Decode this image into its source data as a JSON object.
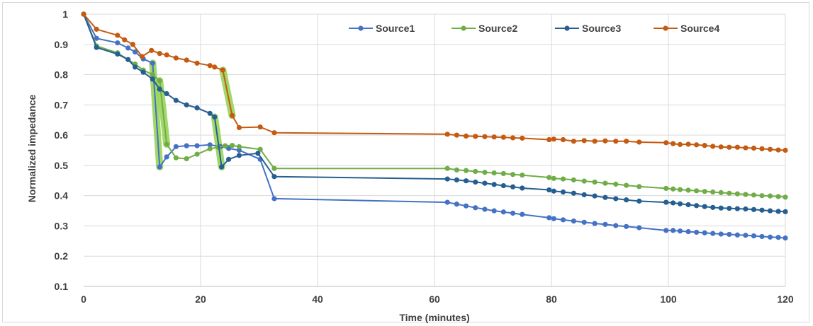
{
  "chart_data": {
    "type": "line",
    "xlabel": "Time (minutes)",
    "ylabel": "Normalized impedance",
    "xlim": [
      0,
      120
    ],
    "ylim": [
      0.1,
      1.0
    ],
    "x_ticks": [
      "0",
      "20",
      "40",
      "60",
      "80",
      "100",
      "120"
    ],
    "y_ticks": [
      "0.1",
      "0.2",
      "0.3",
      "0.4",
      "0.5",
      "0.6",
      "0.7",
      "0.8",
      "0.9",
      "1"
    ],
    "grid": true,
    "legend_position": "top-right",
    "series": [
      {
        "name": "Source1",
        "color": "#4472c4",
        "points": [
          [
            0,
            1.0
          ],
          [
            2.2,
            0.92
          ],
          [
            5.8,
            0.905
          ],
          [
            7.6,
            0.888
          ],
          [
            8.8,
            0.875
          ],
          [
            10.2,
            0.852
          ],
          [
            11.8,
            0.838
          ],
          [
            13.0,
            0.495
          ],
          [
            14.2,
            0.528
          ],
          [
            15.8,
            0.562
          ],
          [
            17.6,
            0.565
          ],
          [
            19.4,
            0.565
          ],
          [
            21.6,
            0.568
          ],
          [
            23.4,
            0.562
          ],
          [
            24.8,
            0.556
          ],
          [
            26.6,
            0.55
          ],
          [
            30.2,
            0.52
          ],
          [
            32.6,
            0.39
          ],
          [
            62.2,
            0.378
          ],
          [
            63.8,
            0.372
          ],
          [
            65.4,
            0.366
          ],
          [
            67.0,
            0.36
          ],
          [
            68.6,
            0.355
          ],
          [
            70.2,
            0.35
          ],
          [
            71.8,
            0.346
          ],
          [
            73.4,
            0.342
          ],
          [
            75.0,
            0.338
          ],
          [
            79.6,
            0.327
          ],
          [
            80.4,
            0.324
          ],
          [
            82.0,
            0.32
          ],
          [
            83.8,
            0.316
          ],
          [
            85.6,
            0.312
          ],
          [
            87.4,
            0.308
          ],
          [
            89.2,
            0.305
          ],
          [
            91.0,
            0.301
          ],
          [
            92.8,
            0.298
          ],
          [
            95.0,
            0.294
          ],
          [
            99.6,
            0.285
          ],
          [
            100.8,
            0.285
          ],
          [
            102.0,
            0.283
          ],
          [
            103.4,
            0.281
          ],
          [
            104.8,
            0.279
          ],
          [
            106.2,
            0.277
          ],
          [
            107.6,
            0.275
          ],
          [
            109.0,
            0.273
          ],
          [
            110.4,
            0.272
          ],
          [
            111.8,
            0.27
          ],
          [
            113.2,
            0.269
          ],
          [
            114.6,
            0.267
          ],
          [
            116.0,
            0.265
          ],
          [
            117.4,
            0.263
          ],
          [
            118.8,
            0.262
          ],
          [
            120.0,
            0.26
          ]
        ]
      },
      {
        "name": "Source2",
        "color": "#70ad47",
        "points": [
          [
            0,
            1.0
          ],
          [
            2.2,
            0.895
          ],
          [
            5.8,
            0.872
          ],
          [
            8.8,
            0.835
          ],
          [
            10.2,
            0.815
          ],
          [
            11.8,
            0.8
          ],
          [
            13.0,
            0.78
          ],
          [
            14.2,
            0.57
          ],
          [
            15.8,
            0.525
          ],
          [
            17.6,
            0.522
          ],
          [
            19.4,
            0.537
          ],
          [
            21.6,
            0.555
          ],
          [
            23.0,
            0.56
          ],
          [
            24.2,
            0.565
          ],
          [
            25.4,
            0.566
          ],
          [
            26.6,
            0.562
          ],
          [
            30.2,
            0.553
          ],
          [
            32.6,
            0.49
          ],
          [
            62.2,
            0.49
          ],
          [
            63.8,
            0.485
          ],
          [
            65.4,
            0.483
          ],
          [
            67.0,
            0.48
          ],
          [
            68.6,
            0.477
          ],
          [
            70.2,
            0.475
          ],
          [
            71.8,
            0.473
          ],
          [
            73.4,
            0.47
          ],
          [
            75.0,
            0.468
          ],
          [
            79.6,
            0.46
          ],
          [
            80.4,
            0.457
          ],
          [
            82.0,
            0.455
          ],
          [
            83.8,
            0.452
          ],
          [
            85.6,
            0.448
          ],
          [
            87.4,
            0.445
          ],
          [
            89.2,
            0.441
          ],
          [
            91.0,
            0.438
          ],
          [
            92.8,
            0.434
          ],
          [
            95.0,
            0.43
          ],
          [
            99.6,
            0.424
          ],
          [
            100.8,
            0.422
          ],
          [
            102.0,
            0.42
          ],
          [
            103.4,
            0.418
          ],
          [
            104.8,
            0.416
          ],
          [
            106.2,
            0.414
          ],
          [
            107.6,
            0.412
          ],
          [
            109.0,
            0.41
          ],
          [
            110.4,
            0.408
          ],
          [
            111.8,
            0.406
          ],
          [
            113.2,
            0.404
          ],
          [
            114.6,
            0.402
          ],
          [
            116.0,
            0.4
          ],
          [
            117.4,
            0.399
          ],
          [
            118.8,
            0.397
          ],
          [
            120.0,
            0.395
          ]
        ]
      },
      {
        "name": "Source3",
        "color": "#255e91",
        "points": [
          [
            0,
            1.0
          ],
          [
            2.2,
            0.89
          ],
          [
            5.8,
            0.868
          ],
          [
            7.6,
            0.85
          ],
          [
            8.8,
            0.825
          ],
          [
            10.2,
            0.808
          ],
          [
            11.8,
            0.785
          ],
          [
            13.0,
            0.752
          ],
          [
            14.2,
            0.737
          ],
          [
            15.8,
            0.715
          ],
          [
            17.6,
            0.7
          ],
          [
            19.4,
            0.69
          ],
          [
            21.6,
            0.672
          ],
          [
            22.4,
            0.66
          ],
          [
            23.6,
            0.495
          ],
          [
            24.8,
            0.52
          ],
          [
            26.6,
            0.533
          ],
          [
            29.8,
            0.54
          ],
          [
            32.6,
            0.463
          ],
          [
            62.2,
            0.455
          ],
          [
            63.8,
            0.452
          ],
          [
            65.4,
            0.449
          ],
          [
            67.0,
            0.445
          ],
          [
            68.6,
            0.441
          ],
          [
            70.2,
            0.437
          ],
          [
            71.8,
            0.433
          ],
          [
            73.4,
            0.429
          ],
          [
            75.0,
            0.425
          ],
          [
            79.6,
            0.419
          ],
          [
            80.4,
            0.415
          ],
          [
            82.0,
            0.412
          ],
          [
            83.8,
            0.408
          ],
          [
            85.6,
            0.403
          ],
          [
            87.4,
            0.399
          ],
          [
            89.2,
            0.394
          ],
          [
            91.0,
            0.39
          ],
          [
            92.8,
            0.386
          ],
          [
            95.0,
            0.382
          ],
          [
            99.6,
            0.378
          ],
          [
            100.8,
            0.376
          ],
          [
            102.0,
            0.373
          ],
          [
            103.4,
            0.37
          ],
          [
            104.8,
            0.367
          ],
          [
            106.2,
            0.364
          ],
          [
            107.6,
            0.361
          ],
          [
            109.0,
            0.359
          ],
          [
            110.4,
            0.358
          ],
          [
            111.8,
            0.357
          ],
          [
            113.2,
            0.356
          ],
          [
            114.6,
            0.354
          ],
          [
            116.0,
            0.352
          ],
          [
            117.4,
            0.35
          ],
          [
            118.8,
            0.348
          ],
          [
            120.0,
            0.347
          ]
        ]
      },
      {
        "name": "Source4",
        "color": "#c55a11",
        "points": [
          [
            0,
            1.0
          ],
          [
            2.2,
            0.95
          ],
          [
            5.8,
            0.93
          ],
          [
            7.0,
            0.915
          ],
          [
            8.4,
            0.9
          ],
          [
            10.0,
            0.86
          ],
          [
            11.6,
            0.88
          ],
          [
            13.0,
            0.87
          ],
          [
            14.2,
            0.865
          ],
          [
            15.8,
            0.855
          ],
          [
            17.6,
            0.848
          ],
          [
            19.4,
            0.838
          ],
          [
            21.6,
            0.83
          ],
          [
            22.4,
            0.825
          ],
          [
            23.8,
            0.815
          ],
          [
            25.4,
            0.665
          ],
          [
            26.6,
            0.625
          ],
          [
            30.2,
            0.627
          ],
          [
            32.6,
            0.608
          ],
          [
            62.2,
            0.603
          ],
          [
            63.8,
            0.6
          ],
          [
            65.4,
            0.597
          ],
          [
            67.0,
            0.596
          ],
          [
            68.6,
            0.595
          ],
          [
            70.2,
            0.594
          ],
          [
            71.8,
            0.593
          ],
          [
            73.4,
            0.591
          ],
          [
            75.0,
            0.59
          ],
          [
            79.6,
            0.585
          ],
          [
            80.4,
            0.587
          ],
          [
            82.0,
            0.585
          ],
          [
            83.8,
            0.58
          ],
          [
            85.6,
            0.582
          ],
          [
            87.4,
            0.58
          ],
          [
            89.2,
            0.581
          ],
          [
            91.0,
            0.58
          ],
          [
            92.8,
            0.58
          ],
          [
            95.0,
            0.577
          ],
          [
            99.6,
            0.575
          ],
          [
            100.8,
            0.572
          ],
          [
            102.0,
            0.569
          ],
          [
            103.4,
            0.57
          ],
          [
            104.8,
            0.568
          ],
          [
            106.2,
            0.566
          ],
          [
            107.6,
            0.563
          ],
          [
            109.0,
            0.561
          ],
          [
            110.4,
            0.56
          ],
          [
            111.8,
            0.56
          ],
          [
            113.2,
            0.558
          ],
          [
            114.6,
            0.557
          ],
          [
            116.0,
            0.555
          ],
          [
            117.4,
            0.553
          ],
          [
            118.8,
            0.551
          ],
          [
            120.0,
            0.55
          ]
        ]
      }
    ],
    "highlight_color": "#92d050",
    "highlight_segments": [
      {
        "series": "Source1",
        "from": [
          11.8,
          0.838
        ],
        "to": [
          13.0,
          0.495
        ]
      },
      {
        "series": "Source2",
        "from": [
          13.0,
          0.78
        ],
        "to": [
          14.2,
          0.57
        ]
      },
      {
        "series": "Source3",
        "from": [
          22.4,
          0.66
        ],
        "to": [
          23.6,
          0.495
        ]
      },
      {
        "series": "Source4",
        "from": [
          23.8,
          0.815
        ],
        "to": [
          25.4,
          0.665
        ]
      }
    ]
  }
}
